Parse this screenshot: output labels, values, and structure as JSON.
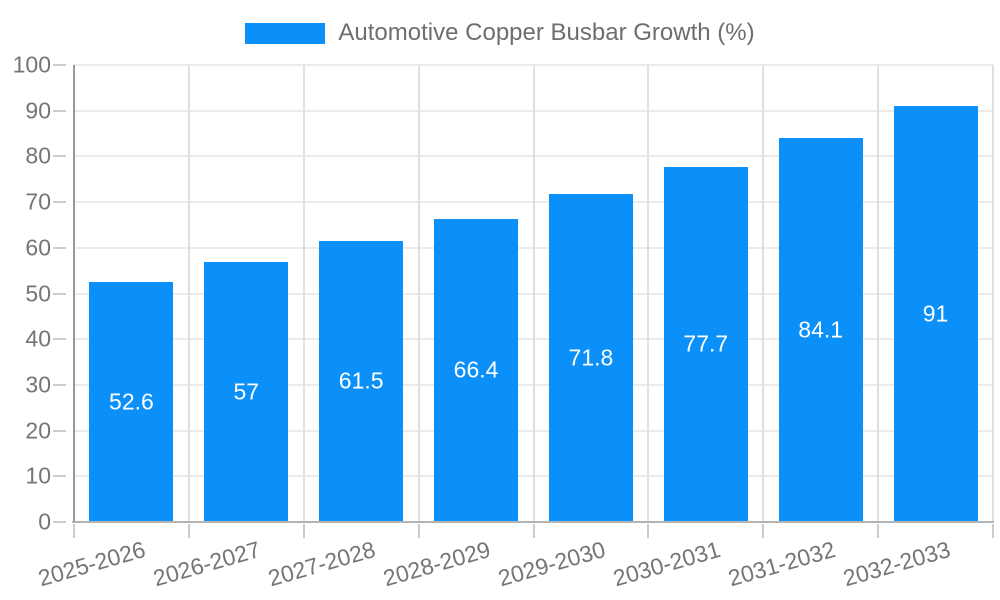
{
  "chart_data": {
    "type": "bar",
    "title": "Automotive Copper Busbar Growth (%)",
    "categories": [
      "2025-2026",
      "2026-2027",
      "2027-2028",
      "2028-2029",
      "2029-2030",
      "2030-2031",
      "2031-2032",
      "2032-2033"
    ],
    "values": [
      52.6,
      57,
      61.5,
      66.4,
      71.8,
      77.7,
      84.1,
      91
    ],
    "xlabel": "",
    "ylabel": "",
    "ylim": [
      0,
      100
    ],
    "y_ticks": [
      0,
      10,
      20,
      30,
      40,
      50,
      60,
      70,
      80,
      90,
      100
    ],
    "grid": "both",
    "legend_position": "top-center",
    "value_labels_shown": true,
    "x_label_rotation_deg": -16
  },
  "colors": {
    "bar": "#0a90f8",
    "axis_text": "#757575",
    "legend_text": "#6e6e6e",
    "value_text": "#ffffff",
    "grid_h": "#ebebeb",
    "grid_v": "#e0e0e0",
    "y_axis_line": "#999999",
    "x_axis_line": "#b3b3b3",
    "tick": "#cccccc",
    "background": "#ffffff"
  }
}
